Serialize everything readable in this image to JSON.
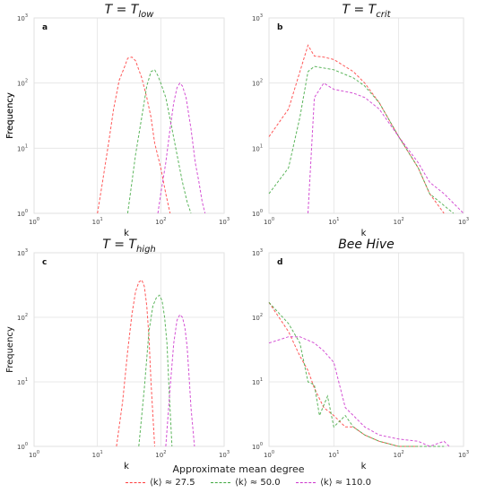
{
  "chart_data": [
    {
      "type": "line",
      "panel_letter": "a",
      "title": "T = T_low",
      "title_main": "T = T",
      "title_sub": "low",
      "xlabel": "k",
      "ylabel": "Frequency",
      "xscale": "log",
      "yscale": "log",
      "xlim": [
        1,
        1000
      ],
      "ylim": [
        1,
        1000
      ],
      "grid": true,
      "series": [
        {
          "color": "#ff3b3b",
          "x": [
            10,
            12,
            15,
            18,
            22,
            27,
            30,
            35,
            40,
            45,
            50,
            60,
            70,
            80,
            100,
            120,
            140
          ],
          "y": [
            1,
            3,
            12,
            40,
            110,
            180,
            240,
            250,
            220,
            160,
            120,
            60,
            30,
            12,
            5,
            2,
            1
          ]
        },
        {
          "color": "#3fa83f",
          "x": [
            30,
            35,
            40,
            50,
            60,
            70,
            80,
            90,
            100,
            120,
            150,
            180,
            220,
            260,
            300
          ],
          "y": [
            1,
            3,
            8,
            30,
            90,
            150,
            160,
            130,
            100,
            60,
            20,
            8,
            3,
            1.5,
            1
          ]
        },
        {
          "color": "#cc33cc",
          "x": [
            90,
            100,
            120,
            140,
            160,
            180,
            200,
            220,
            250,
            300,
            350,
            400,
            450,
            500
          ],
          "y": [
            1,
            2,
            6,
            20,
            50,
            85,
            100,
            90,
            60,
            20,
            6,
            3,
            1.5,
            1
          ]
        }
      ]
    },
    {
      "type": "line",
      "panel_letter": "b",
      "title": "T = T_crit",
      "title_main": "T = T",
      "title_sub": "crit",
      "xlabel": "k",
      "ylabel": "Frequency",
      "xscale": "log",
      "yscale": "log",
      "xlim": [
        1,
        1000
      ],
      "ylim": [
        1,
        1000
      ],
      "grid": true,
      "series": [
        {
          "color": "#ff3b3b",
          "x": [
            1,
            2,
            3,
            4,
            5,
            7,
            10,
            20,
            30,
            50,
            100,
            200,
            300,
            500
          ],
          "y": [
            15,
            40,
            150,
            380,
            260,
            250,
            230,
            150,
            100,
            50,
            15,
            5,
            2,
            1
          ]
        },
        {
          "color": "#3fa83f",
          "x": [
            1,
            2,
            3,
            4,
            5,
            7,
            10,
            20,
            30,
            50,
            100,
            200,
            300,
            700
          ],
          "y": [
            2,
            5,
            30,
            150,
            180,
            170,
            160,
            120,
            90,
            50,
            15,
            5,
            2,
            1
          ]
        },
        {
          "color": "#cc33cc",
          "x": [
            4,
            5,
            7,
            10,
            20,
            30,
            50,
            100,
            200,
            300,
            500,
            1000
          ],
          "y": [
            1,
            60,
            100,
            80,
            70,
            60,
            40,
            15,
            6,
            3,
            2,
            1
          ]
        }
      ]
    },
    {
      "type": "line",
      "panel_letter": "c",
      "title": "T = T_high",
      "title_main": "T = T",
      "title_sub": "high",
      "xlabel": "k",
      "ylabel": "Frequency",
      "xscale": "log",
      "yscale": "log",
      "xlim": [
        1,
        1000
      ],
      "ylim": [
        1,
        1000
      ],
      "grid": true,
      "series": [
        {
          "color": "#ff3b3b",
          "x": [
            20,
            25,
            30,
            35,
            40,
            45,
            50,
            55,
            60,
            65,
            70,
            80
          ],
          "y": [
            1,
            5,
            30,
            110,
            250,
            350,
            380,
            300,
            150,
            50,
            10,
            1
          ]
        },
        {
          "color": "#3fa83f",
          "x": [
            45,
            55,
            65,
            75,
            85,
            95,
            105,
            115,
            125,
            135,
            150
          ],
          "y": [
            1,
            8,
            60,
            150,
            200,
            220,
            180,
            100,
            40,
            8,
            1
          ]
        },
        {
          "color": "#cc33cc",
          "x": [
            120,
            140,
            160,
            180,
            200,
            220,
            240,
            260,
            280,
            300,
            340
          ],
          "y": [
            1,
            8,
            40,
            90,
            110,
            100,
            70,
            35,
            12,
            4,
            1
          ]
        }
      ]
    },
    {
      "type": "line",
      "panel_letter": "d",
      "title": "Bee Hive",
      "title_main": "Bee Hive",
      "title_sub": "",
      "xlabel": "k",
      "ylabel": "",
      "xscale": "log",
      "yscale": "log",
      "xlim": [
        1,
        1000
      ],
      "ylim": [
        1,
        1000
      ],
      "grid": true,
      "series": [
        {
          "color": "#ff3b3b",
          "x": [
            1,
            2,
            3,
            4,
            5,
            7,
            10,
            15,
            20,
            30,
            50,
            100,
            200
          ],
          "y": [
            170,
            60,
            25,
            15,
            8,
            4,
            3,
            2,
            2,
            1.5,
            1.2,
            1,
            1
          ]
        },
        {
          "color": "#3fa83f",
          "x": [
            1,
            2,
            3,
            4,
            5,
            6,
            8,
            10,
            15,
            20,
            30,
            50,
            100,
            200,
            500
          ],
          "y": [
            170,
            80,
            40,
            10,
            9,
            3,
            6,
            2,
            3,
            2,
            1.5,
            1.2,
            1,
            1,
            1
          ]
        },
        {
          "color": "#cc33cc",
          "x": [
            1,
            2,
            3,
            5,
            7,
            10,
            15,
            20,
            30,
            50,
            100,
            200,
            300,
            500,
            600
          ],
          "y": [
            40,
            50,
            50,
            40,
            30,
            20,
            4,
            3,
            2,
            1.5,
            1.3,
            1.2,
            1,
            1.2,
            1
          ]
        }
      ]
    }
  ],
  "legend": {
    "title": "Approximate mean  degree",
    "items": [
      {
        "label": "⟨k⟩ ≈ 27.5",
        "color": "#ff3b3b"
      },
      {
        "label": "⟨k⟩ ≈ 50.0",
        "color": "#3fa83f"
      },
      {
        "label": "⟨k⟩ ≈ 110.0",
        "color": "#cc33cc"
      }
    ]
  }
}
